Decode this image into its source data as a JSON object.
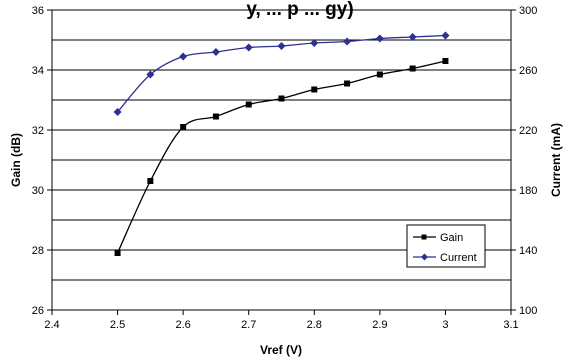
{
  "chart_data": {
    "type": "line",
    "title": "y, ... p ... gy)",
    "xlabel": "Vref (V)",
    "ylabel_left": "Gain (dB)",
    "ylabel_right": "Current (mA)",
    "xlim": [
      2.4,
      3.1
    ],
    "ylim_left": [
      26,
      36
    ],
    "ylim_right": [
      100,
      300
    ],
    "x_ticks": [
      "2.4",
      "2.5",
      "2.6",
      "2.7",
      "2.8",
      "2.9",
      "3",
      "3.1"
    ],
    "y_ticks_left": [
      "26",
      "28",
      "30",
      "32",
      "34",
      "36"
    ],
    "y_ticks_right": [
      "100",
      "140",
      "180",
      "220",
      "260",
      "300"
    ],
    "grid": "horizontal",
    "legend_position": "bottom-right",
    "series": [
      {
        "name": "Gain",
        "axis": "left",
        "color": "#000000",
        "marker": "square",
        "x": [
          2.5,
          2.55,
          2.6,
          2.65,
          2.7,
          2.75,
          2.8,
          2.85,
          2.9,
          2.95,
          3.0
        ],
        "values": [
          27.9,
          30.3,
          32.1,
          32.45,
          32.85,
          33.05,
          33.35,
          33.55,
          33.85,
          34.05,
          34.3
        ]
      },
      {
        "name": "Current",
        "axis": "right",
        "color": "#2e3192",
        "marker": "diamond",
        "x": [
          2.5,
          2.55,
          2.6,
          2.65,
          2.7,
          2.75,
          2.8,
          2.85,
          2.9,
          2.95,
          3.0
        ],
        "values": [
          232,
          257,
          269,
          272,
          275,
          276,
          278,
          279,
          281,
          282,
          283
        ]
      }
    ]
  }
}
